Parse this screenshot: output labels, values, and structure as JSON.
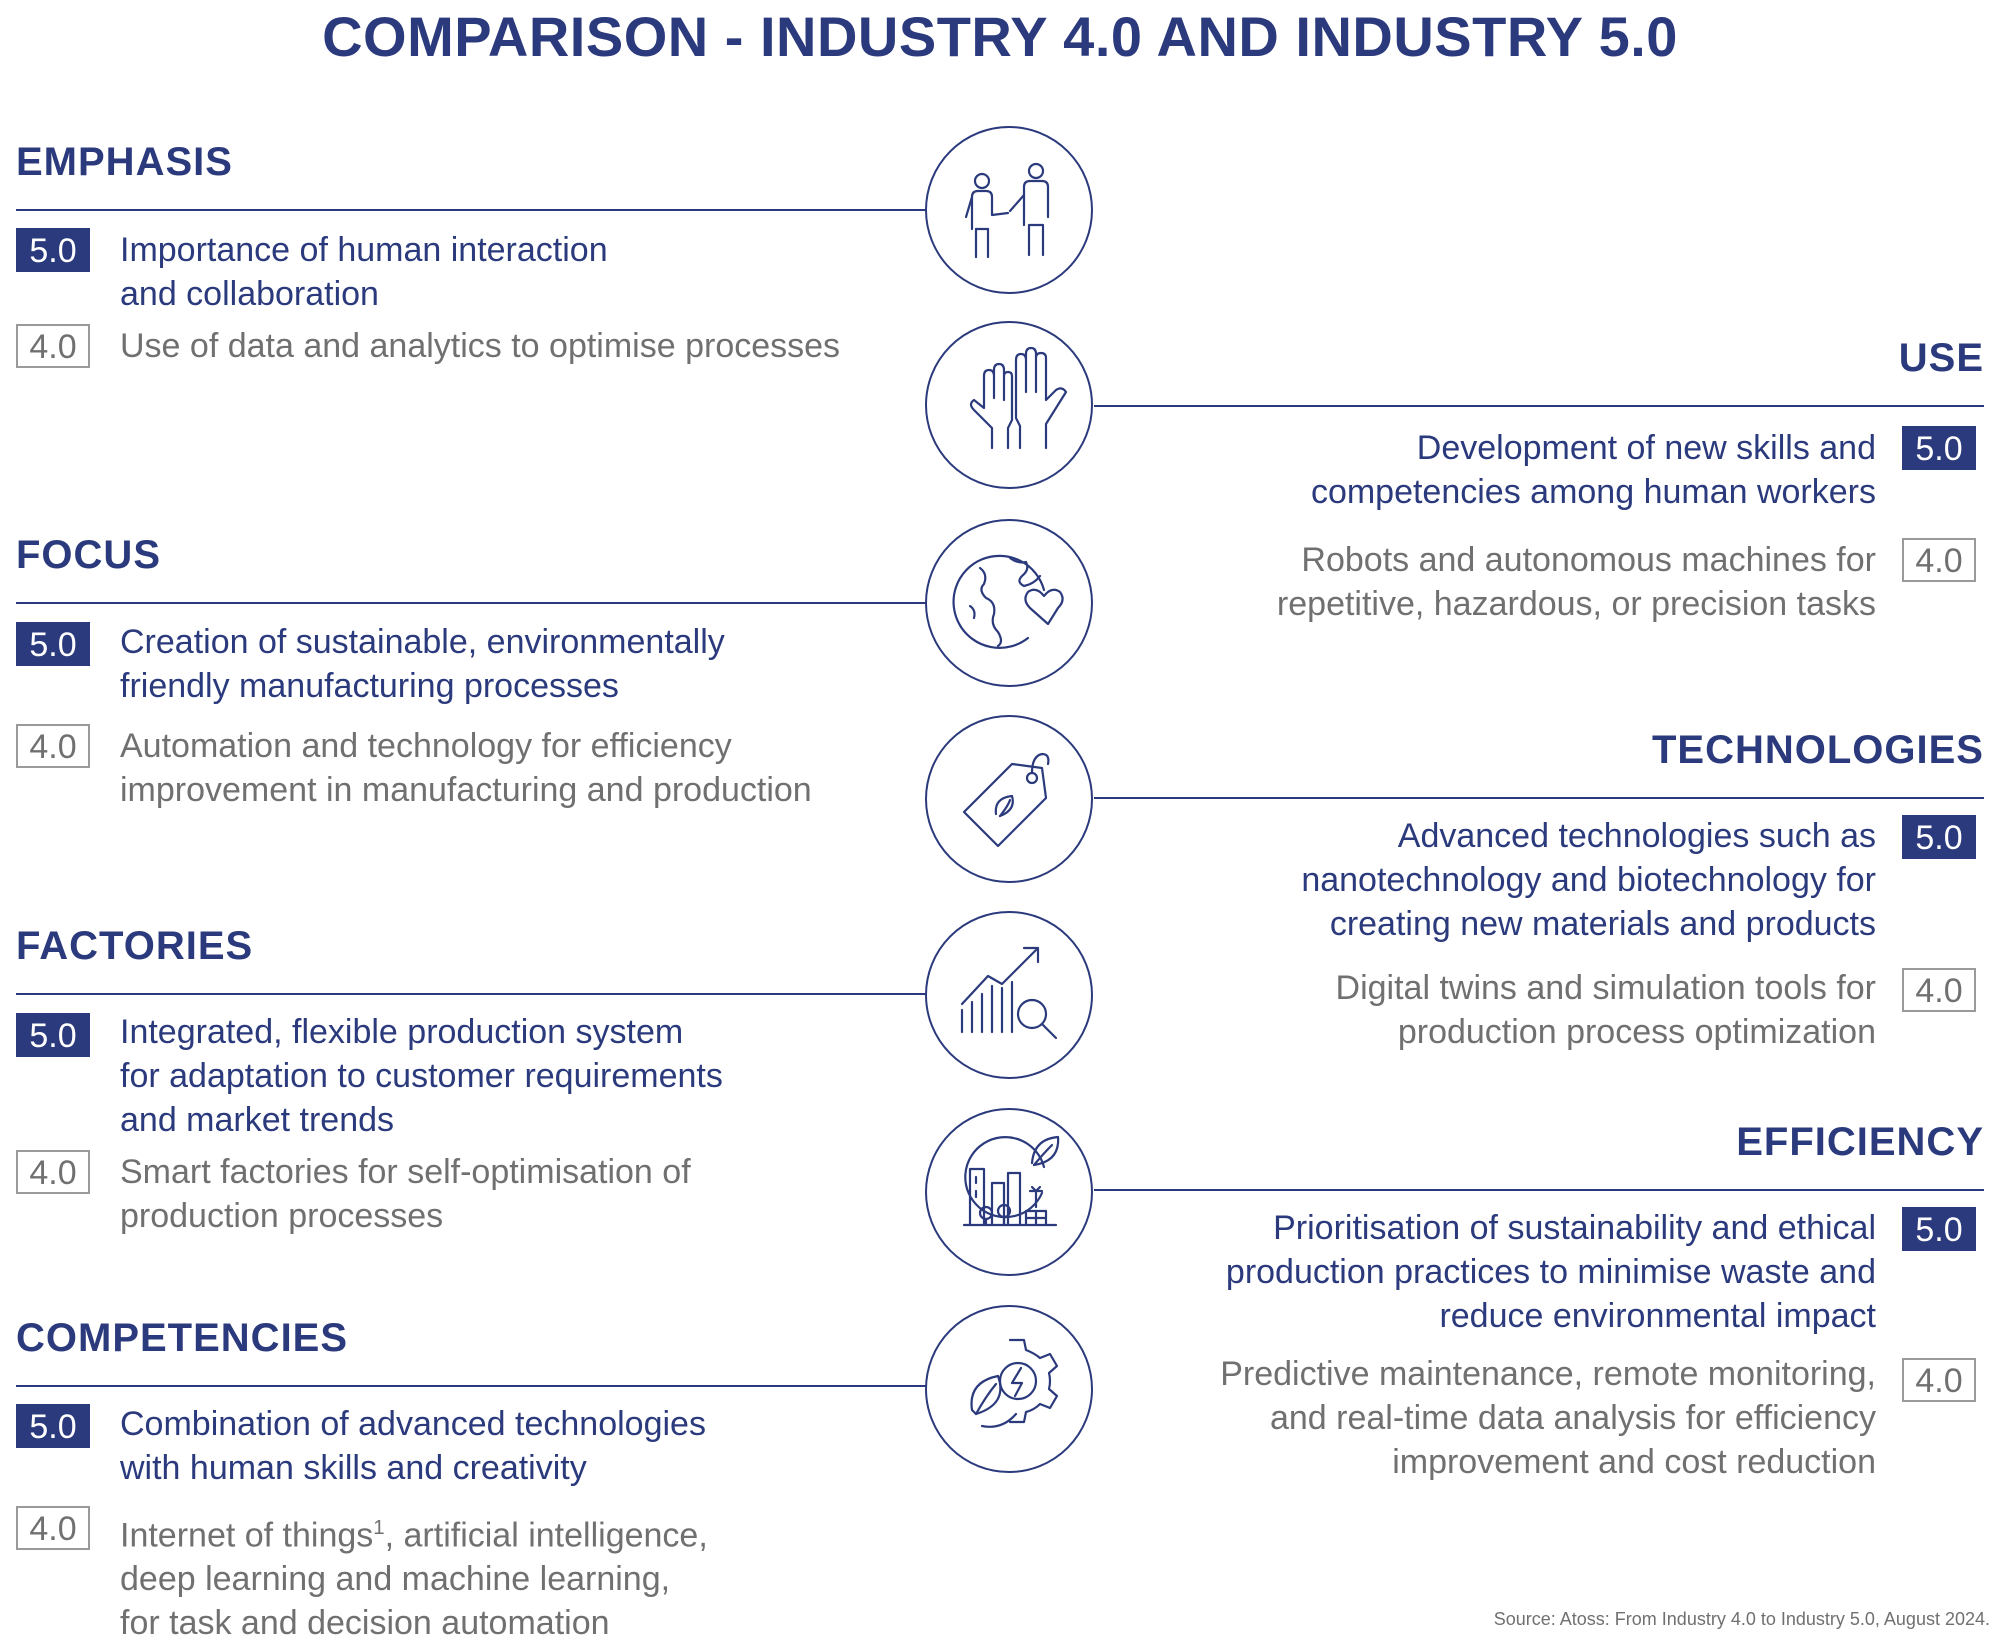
{
  "title": "COMPARISON - INDUSTRY 4.0 AND INDUSTRY 5.0",
  "badges": {
    "v5": "5.0",
    "v4": "4.0"
  },
  "left": {
    "emphasis": {
      "heading": "EMPHASIS",
      "v5": [
        "Importance of human interaction",
        "and collaboration"
      ],
      "v4": [
        "Use of data and analytics to optimise processes"
      ]
    },
    "focus": {
      "heading": "FOCUS",
      "v5": [
        "Creation of sustainable, environmentally",
        "friendly manufacturing processes"
      ],
      "v4": [
        "Automation and technology for efficiency",
        "improvement in manufacturing and production"
      ]
    },
    "factories": {
      "heading": "FACTORIES",
      "v5": [
        "Integrated, flexible production system",
        "for adaptation to customer requirements",
        "and market trends"
      ],
      "v4": [
        "Smart factories for self-optimisation of",
        "production processes"
      ]
    },
    "competencies": {
      "heading": "COMPETENCIES",
      "v5": [
        "Combination of advanced technologies",
        "with human skills and creativity"
      ],
      "v4_line1_pre": "Internet of things",
      "v4_line1_sup": "1",
      "v4_line1_post": ", artificial intelligence,",
      "v4_rest": [
        "deep learning and machine learning,",
        "for task and decision automation"
      ]
    }
  },
  "right": {
    "use": {
      "heading": "USE",
      "v5": [
        "Development of new skills and",
        "competencies among human workers"
      ],
      "v4": [
        "Robots and autonomous machines for",
        "repetitive, hazardous, or precision tasks"
      ]
    },
    "technologies": {
      "heading": "TECHNOLOGIES",
      "v5": [
        "Advanced technologies such as",
        "nanotechnology and biotechnology for",
        "creating new materials and products"
      ],
      "v4": [
        "Digital twins and simulation tools for",
        "production process optimization"
      ]
    },
    "efficiency": {
      "heading": "EFFICIENCY",
      "v5": [
        "Prioritisation of sustainability and ethical",
        "production  practices to minimise waste and",
        "reduce environmental impact"
      ],
      "v4": [
        "Predictive maintenance, remote monitoring,",
        "and real-time data analysis for efficiency",
        "improvement and cost reduction"
      ]
    }
  },
  "icons": [
    "people-interaction-icon",
    "raised-hands-icon",
    "globe-heart-icon",
    "eco-tag-icon",
    "growth-chart-magnifier-icon",
    "green-city-icon",
    "gear-energy-leaf-icon"
  ],
  "source": "Source: Atoss: From Industry 4.0 to Industry 5.0, August 2024.",
  "colors": {
    "navy": "#2b3a7c",
    "gray": "#707070",
    "border_gray": "#9a9a9a"
  }
}
